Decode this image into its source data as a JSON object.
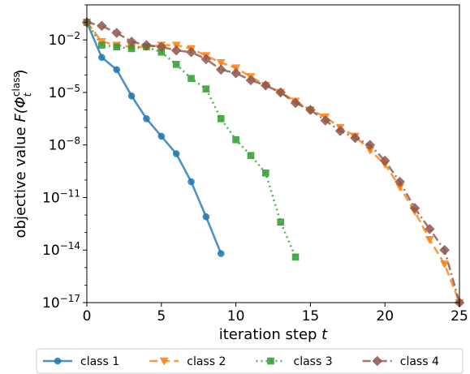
{
  "chart_data": {
    "type": "line",
    "xlabel_text": "iteration step ",
    "xlabel_var": "t",
    "ylabel_text": "objective value ",
    "ylabel_math": "F(Φ",
    "ylabel_sub": "t",
    "ylabel_sup": "class",
    "ylabel_close": ")",
    "xlim": [
      0,
      25
    ],
    "ylim_log10": [
      -17,
      0
    ],
    "yscale": "log",
    "xticks": [
      0,
      5,
      10,
      15,
      20,
      25
    ],
    "yticks_exp": [
      -17,
      -14,
      -11,
      -8,
      -5,
      -2
    ],
    "ytick_base": "10",
    "grid": false,
    "legend_position": "bottom, outside plot",
    "series": [
      {
        "name": "class 1",
        "color": "#1f77b4",
        "linestyle": "solid",
        "marker": "circle",
        "x": [
          0,
          1,
          2,
          3,
          4,
          5,
          6,
          7,
          8,
          9
        ],
        "y_log10": [
          -1.0,
          -3.0,
          -3.7,
          -5.2,
          -6.5,
          -7.5,
          -8.5,
          -10.1,
          -12.1,
          -14.2
        ]
      },
      {
        "name": "class 2",
        "color": "#ff7f0e",
        "linestyle": "dashed",
        "marker": "triangle-down",
        "x": [
          0,
          1,
          2,
          3,
          4,
          5,
          6,
          7,
          8,
          9,
          10,
          11,
          12,
          13,
          14,
          15,
          16,
          17,
          18,
          19,
          20,
          21,
          22,
          23,
          24,
          25
        ],
        "y_log10": [
          -1.0,
          -2.1,
          -2.3,
          -2.4,
          -2.4,
          -2.3,
          -2.3,
          -2.5,
          -2.9,
          -3.3,
          -3.6,
          -4.1,
          -4.6,
          -5.0,
          -5.5,
          -6.0,
          -6.4,
          -7.0,
          -7.5,
          -8.3,
          -9.1,
          -10.4,
          -11.8,
          -13.4,
          -14.8,
          -17.0
        ]
      },
      {
        "name": "class 3",
        "color": "#2ca02c",
        "linestyle": "dotted",
        "marker": "square",
        "x": [
          0,
          1,
          2,
          3,
          4,
          5,
          6,
          7,
          8,
          9,
          10,
          11,
          12,
          13,
          14
        ],
        "y_log10": [
          -1.0,
          -2.3,
          -2.4,
          -2.5,
          -2.4,
          -2.7,
          -3.4,
          -4.2,
          -4.8,
          -6.5,
          -7.7,
          -8.6,
          -9.6,
          -12.4,
          -14.4
        ]
      },
      {
        "name": "class 4",
        "color": "#8c564b",
        "linestyle": "dashdot",
        "marker": "diamond",
        "x": [
          0,
          1,
          2,
          3,
          4,
          5,
          6,
          7,
          8,
          9,
          10,
          11,
          12,
          13,
          14,
          15,
          16,
          17,
          18,
          19,
          20,
          21,
          22,
          23,
          24,
          25
        ],
        "y_log10": [
          -1.0,
          -1.2,
          -1.6,
          -2.1,
          -2.3,
          -2.4,
          -2.6,
          -2.7,
          -3.1,
          -3.7,
          -3.9,
          -4.3,
          -4.6,
          -5.0,
          -5.6,
          -6.0,
          -6.6,
          -7.2,
          -7.6,
          -8.0,
          -8.9,
          -10.1,
          -11.6,
          -12.8,
          -14.0,
          -17.0
        ]
      }
    ]
  }
}
